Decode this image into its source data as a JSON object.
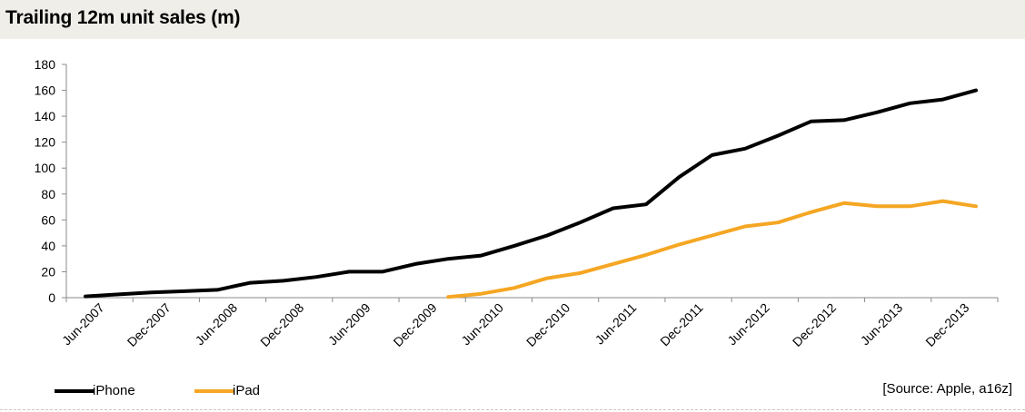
{
  "title": "Trailing 12m unit sales (m)",
  "source": "[Source: Apple, a16z]",
  "colors": {
    "iphone": "#000000",
    "ipad": "#f5a623",
    "title_bg": "#efeee9"
  },
  "chart_data": {
    "type": "line",
    "title": "Trailing 12m unit sales (m)",
    "xlabel": "",
    "ylabel": "",
    "ylim": [
      0,
      180
    ],
    "yticks": [
      0,
      20,
      40,
      60,
      80,
      100,
      120,
      140,
      160,
      180
    ],
    "grid": false,
    "legend": "bottom-left",
    "categories": [
      "Jun-2007",
      "Sep-2007",
      "Dec-2007",
      "Mar-2008",
      "Jun-2008",
      "Sep-2008",
      "Dec-2008",
      "Mar-2009",
      "Jun-2009",
      "Sep-2009",
      "Dec-2009",
      "Mar-2010",
      "Jun-2010",
      "Sep-2010",
      "Dec-2010",
      "Mar-2011",
      "Jun-2011",
      "Sep-2011",
      "Dec-2011",
      "Mar-2012",
      "Jun-2012",
      "Sep-2012",
      "Dec-2012",
      "Mar-2013",
      "Jun-2013",
      "Sep-2013",
      "Dec-2013",
      "Mar-2014"
    ],
    "tick_labels": [
      "Jun-2007",
      "Dec-2007",
      "Jun-2008",
      "Dec-2008",
      "Jun-2009",
      "Dec-2009",
      "Jun-2010",
      "Dec-2010",
      "Jun-2011",
      "Dec-2011",
      "Jun-2012",
      "Dec-2012",
      "Jun-2013",
      "Dec-2013"
    ],
    "series": [
      {
        "name": "iPhone",
        "color": "#000000",
        "values": [
          1,
          2.5,
          4,
          5,
          6,
          11.5,
          13,
          16,
          20,
          20,
          26,
          30,
          32.5,
          40,
          48,
          58,
          69,
          72,
          93,
          110,
          115,
          125,
          136,
          137,
          143,
          150,
          153,
          160
        ]
      },
      {
        "name": "iPad",
        "color": "#f5a623",
        "values": [
          null,
          null,
          null,
          null,
          null,
          null,
          null,
          null,
          null,
          null,
          null,
          0.5,
          3,
          7.5,
          15,
          19,
          26,
          33,
          41,
          48,
          55,
          58,
          66,
          73,
          70.5,
          70.5,
          74.5,
          70.5
        ]
      }
    ]
  }
}
